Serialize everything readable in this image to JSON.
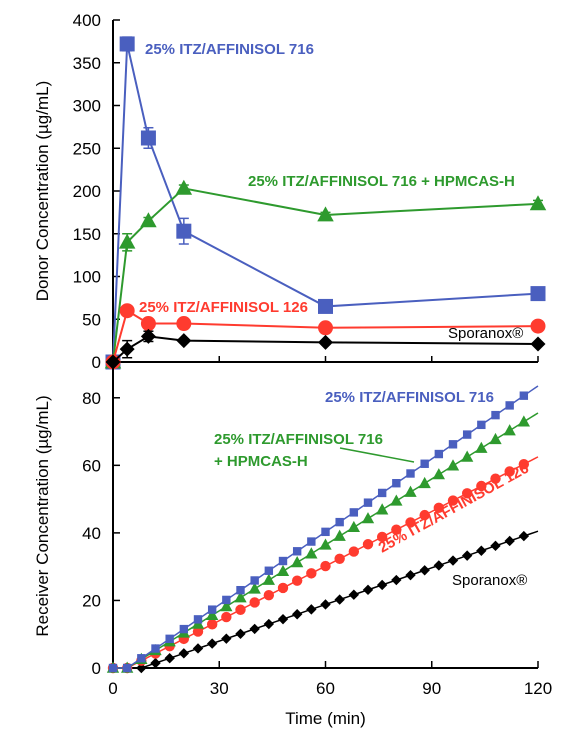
{
  "chart_data": [
    {
      "type": "line",
      "ylabel": "Donor Concentration (µg/mL)",
      "xlim": [
        0,
        120
      ],
      "ylim": [
        0,
        400
      ],
      "yticks": [
        0,
        50,
        100,
        150,
        200,
        250,
        300,
        350,
        400
      ],
      "grid": false,
      "legend": "inline labels",
      "series": [
        {
          "name": "25% ITZ/AFFINISOL 716",
          "color": "#4a5fbf",
          "marker": "square",
          "x": [
            0,
            4,
            10,
            20,
            60,
            120
          ],
          "y": [
            0,
            372,
            262,
            153,
            65,
            80
          ],
          "err": [
            0,
            8,
            12,
            15,
            4,
            5
          ]
        },
        {
          "name": "25% ITZ/AFFINISOL 716 + HPMCAS-H",
          "color": "#2e9a2e",
          "marker": "triangle",
          "x": [
            0,
            4,
            10,
            20,
            60,
            120
          ],
          "y": [
            0,
            140,
            165,
            203,
            172,
            185
          ],
          "err": [
            0,
            10,
            4,
            4,
            3,
            4
          ]
        },
        {
          "name": "25% ITZ/AFFINISOL 126",
          "color": "#ff3b2f",
          "marker": "circle",
          "x": [
            0,
            4,
            10,
            20,
            60,
            120
          ],
          "y": [
            0,
            60,
            45,
            45,
            40,
            42
          ],
          "err": [
            0,
            3,
            4,
            2,
            2,
            2
          ]
        },
        {
          "name": "Sporanox®",
          "color": "#000000",
          "marker": "diamond",
          "x": [
            0,
            4,
            10,
            20,
            60,
            120
          ],
          "y": [
            0,
            15,
            30,
            25,
            23,
            21
          ],
          "err": [
            0,
            10,
            6,
            2,
            1,
            1
          ]
        }
      ]
    },
    {
      "type": "line",
      "xlabel": "Time (min)",
      "ylabel": "Receiver Concentration (µg/mL)",
      "xlim": [
        0,
        120
      ],
      "ylim": [
        0,
        90
      ],
      "xticks": [
        0,
        30,
        60,
        90,
        120
      ],
      "yticks": [
        0,
        20,
        40,
        60,
        80
      ],
      "grid": false,
      "legend": "inline labels",
      "series": [
        {
          "name": "25% ITZ/AFFINISOL 716",
          "color": "#4a5fbf",
          "marker": "square",
          "y_at_120": 83.5,
          "onset": 4
        },
        {
          "name": "25% ITZ/AFFINISOL 716 + HPMCAS-H",
          "color": "#2e9a2e",
          "marker": "triangle",
          "y_at_120": 75.5,
          "onset": 4
        },
        {
          "name": "25% ITZ/AFFINISOL 126",
          "color": "#ff3b2f",
          "marker": "circle",
          "y_at_120": 62.5,
          "onset": 4
        },
        {
          "name": "Sporanox®",
          "color": "#000000",
          "marker": "diamond",
          "y_at_120": 40.5,
          "onset": 8
        }
      ]
    }
  ]
}
